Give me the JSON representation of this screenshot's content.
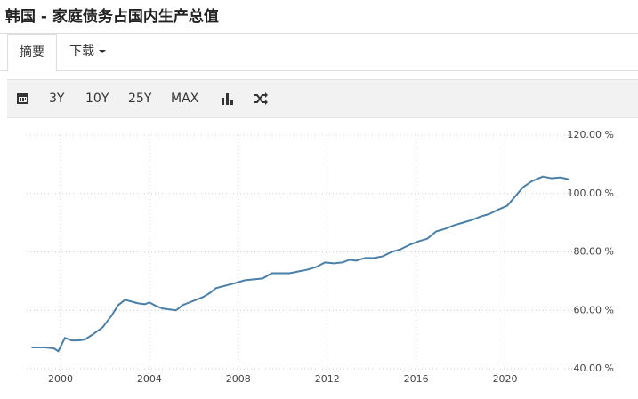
{
  "header": {
    "title": "韩国 - 家庭债务占国内生产总值"
  },
  "tabs": [
    "摘要",
    "下载"
  ],
  "toolbar": [
    "3Y",
    "10Y",
    "25Y",
    "MAX"
  ],
  "chart_data": {
    "type": "line",
    "x": [
      1998.7,
      1999.3,
      1999.7,
      1999.9,
      2000.2,
      2000.5,
      2000.8,
      2001.1,
      2001.5,
      2001.9,
      2002.3,
      2002.6,
      2002.9,
      2003.2,
      2003.5,
      2003.8,
      2004.0,
      2004.3,
      2004.6,
      2004.9,
      2005.2,
      2005.5,
      2005.8,
      2006.1,
      2006.4,
      2006.7,
      2007.0,
      2007.3,
      2007.6,
      2007.9,
      2008.3,
      2008.7,
      2009.1,
      2009.5,
      2009.9,
      2010.3,
      2010.7,
      2011.1,
      2011.5,
      2011.9,
      2012.3,
      2012.7,
      2013.0,
      2013.3,
      2013.7,
      2014.1,
      2014.5,
      2014.9,
      2015.3,
      2015.7,
      2016.1,
      2016.5,
      2016.9,
      2017.3,
      2017.7,
      2018.1,
      2018.5,
      2018.9,
      2019.3,
      2019.7,
      2020.1,
      2020.4,
      2020.8,
      2021.2,
      2021.7,
      2022.1,
      2022.5,
      2022.9
    ],
    "series": [
      {
        "name": "家庭债务占国内生产总值",
        "color": "#4a7fa8",
        "values": [
          47.3,
          47.3,
          47.0,
          46.0,
          50.6,
          49.7,
          49.7,
          50.0,
          52.0,
          54.2,
          58.2,
          61.8,
          63.6,
          63.0,
          62.4,
          62.1,
          62.7,
          61.5,
          60.6,
          60.3,
          60.0,
          61.8,
          62.7,
          63.6,
          64.5,
          65.8,
          67.6,
          68.2,
          68.8,
          69.4,
          70.3,
          70.6,
          70.9,
          72.7,
          72.7,
          72.7,
          73.3,
          73.9,
          74.8,
          76.4,
          76.1,
          76.4,
          77.3,
          77.0,
          77.9,
          77.9,
          78.5,
          80.0,
          80.9,
          82.4,
          83.6,
          84.5,
          87.0,
          87.9,
          89.1,
          90.0,
          90.9,
          92.1,
          93.0,
          94.5,
          95.8,
          98.5,
          102.1,
          104.2,
          105.8,
          105.2,
          105.5,
          104.8
        ]
      }
    ],
    "xlim": [
      1998,
      2023.3
    ],
    "xticks": [
      2000,
      2004,
      2008,
      2012,
      2016,
      2020
    ],
    "ylim": [
      40,
      120
    ],
    "yticks": [
      {
        "value": 40,
        "label": "40.00 %"
      },
      {
        "value": 60,
        "label": "60.00 %"
      },
      {
        "value": 80,
        "label": "80.00 %"
      },
      {
        "value": 100,
        "label": "100.00 %"
      },
      {
        "value": 120,
        "label": "120.00 %"
      }
    ],
    "grid": true
  }
}
